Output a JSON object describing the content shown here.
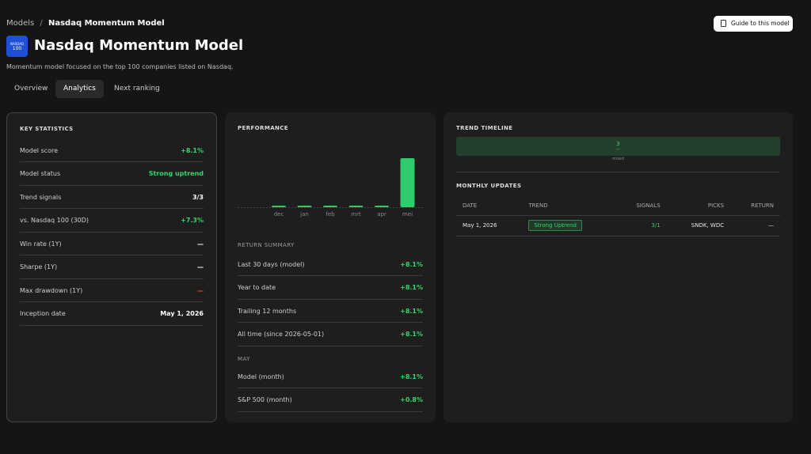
{
  "breadcrumb": {
    "parent": "Models",
    "separator": "/",
    "current": "Nasdaq Momentum Model"
  },
  "guide_button": "Guide to this model",
  "header": {
    "logo_top": "NASDAQ",
    "logo_bottom": "100",
    "title": "Nasdaq Momentum Model",
    "description": "Momentum model focused on the top 100 companies listed on Nasdaq."
  },
  "tabs": [
    "Overview",
    "Analytics",
    "Next ranking"
  ],
  "key_statistics": {
    "title": "KEY STATISTICS",
    "rows": [
      [
        "Model score",
        "+8.1%"
      ],
      [
        "Model status",
        "Strong uptrend"
      ],
      [
        "Trend signals",
        "3/3"
      ],
      [
        "vs. Nasdaq 100 (30D)",
        "+7.3%"
      ],
      [
        "Win rate (1Y)",
        "—"
      ],
      [
        "Sharpe (1Y)",
        "—"
      ],
      [
        "Max drawdown (1Y)",
        "—"
      ],
      [
        "Inception date",
        "May 1, 2026"
      ]
    ]
  },
  "performance": {
    "title": "PERFORMANCE",
    "chart": {
      "type": "bar",
      "categories": [
        "dec",
        "jan",
        "feb",
        "mrt",
        "apr",
        "mei"
      ],
      "values": [
        0,
        0,
        0,
        0,
        0,
        8.1
      ],
      "color": "#2ecc6a"
    },
    "return_summary": {
      "title": "RETURN SUMMARY",
      "rows": [
        [
          "Last 30 days (model)",
          "+8.1%"
        ],
        [
          "Year to date",
          "+8.1%"
        ],
        [
          "Trailing 12 months",
          "+8.1%"
        ],
        [
          "All time (since 2026-05-01)",
          "+8.1%"
        ]
      ]
    },
    "month": {
      "title": "MAY",
      "rows": [
        [
          "Model (month)",
          "+8.1%"
        ],
        [
          "S&P 500 (month)",
          "+0.8%"
        ]
      ]
    }
  },
  "trend_timeline": {
    "title": "TREND TIMELINE",
    "bar_value": "3",
    "bar_sub": "—",
    "bar_label": "mixed"
  },
  "monthly_updates": {
    "title": "MONTHLY UPDATES",
    "headers": [
      "DATE",
      "TREND",
      "SIGNALS",
      "PICKS",
      "RETURN"
    ],
    "rows": [
      [
        "May 1, 2026",
        "Strong Uptrend",
        "3/1",
        "SNDK, WDC",
        "—"
      ]
    ]
  }
}
